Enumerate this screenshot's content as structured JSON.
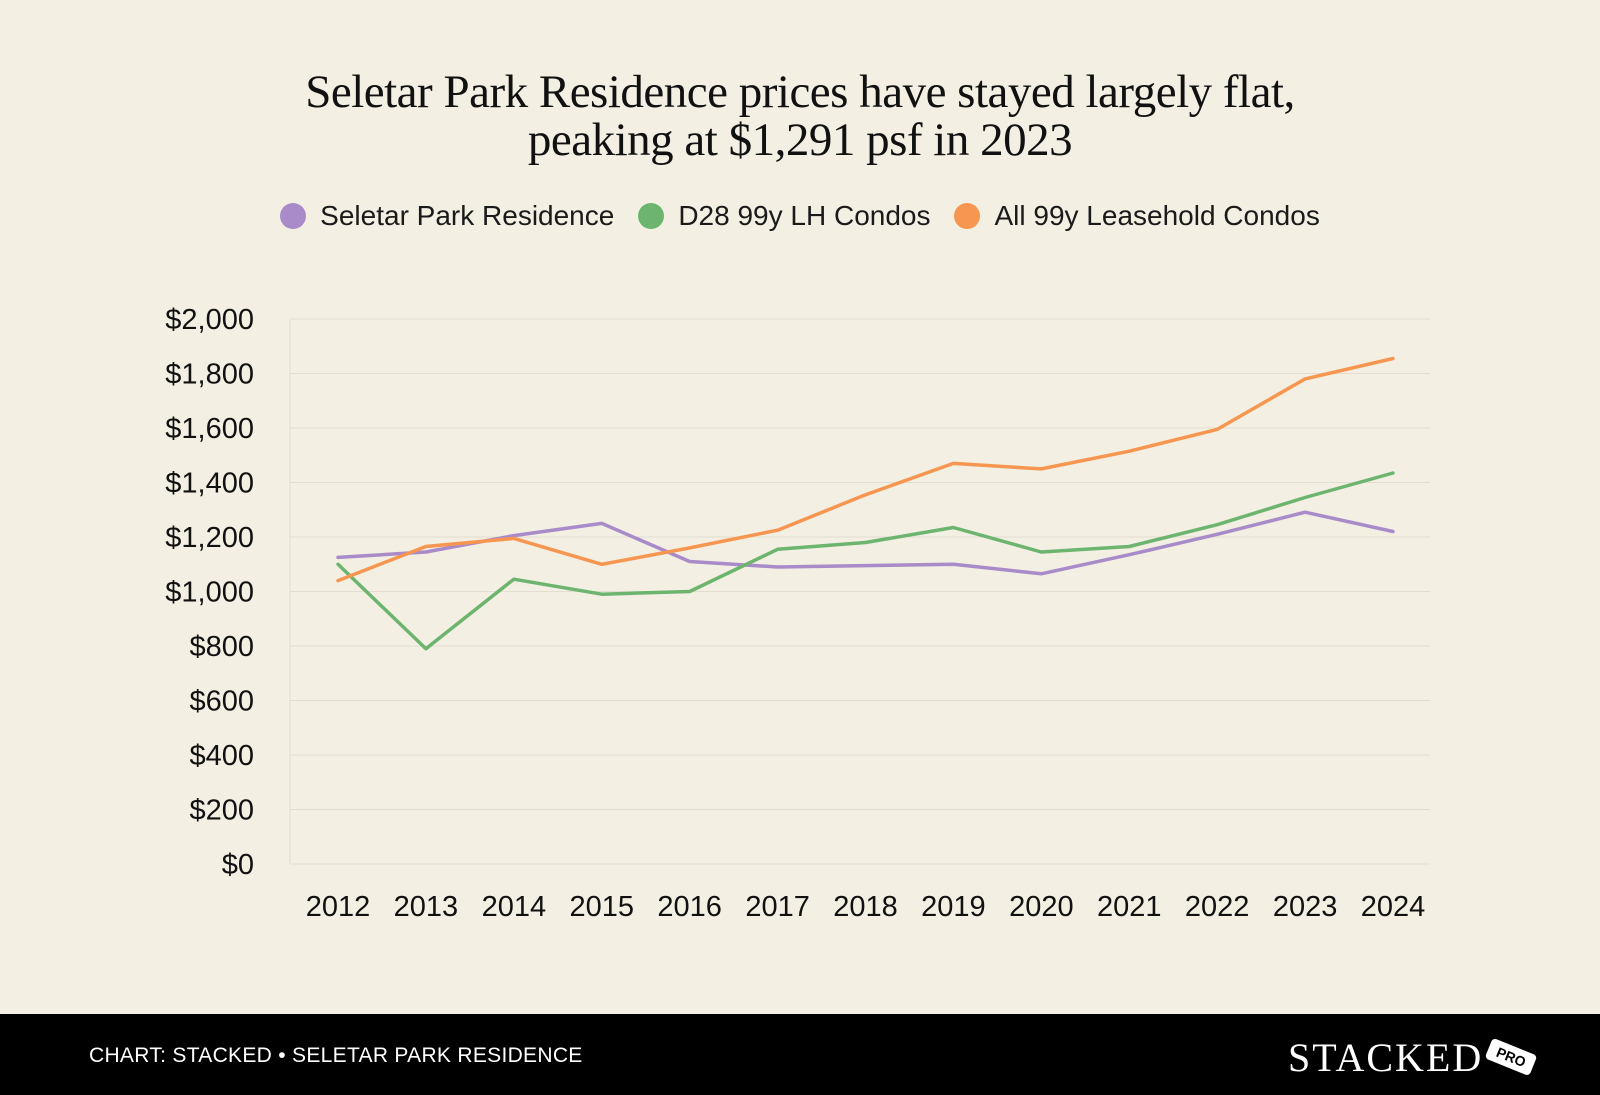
{
  "title": {
    "line1": "Seletar Park Residence prices have stayed largely flat,",
    "line2": "peaking at $1,291 psf in 2023"
  },
  "footer": {
    "source": "CHART: STACKED • SELETAR PARK RESIDENCE",
    "brand": "STACKED",
    "badge": "PRO"
  },
  "chart_data": {
    "type": "line",
    "title": "Seletar Park Residence prices have stayed largely flat, peaking at $1,291 psf in 2023",
    "xlabel": "",
    "ylabel": "",
    "ylim": [
      0,
      2000
    ],
    "yticks": [
      0,
      200,
      400,
      600,
      800,
      1000,
      1200,
      1400,
      1600,
      1800,
      2000
    ],
    "ytick_labels": [
      "$0",
      "$200",
      "$400",
      "$600",
      "$800",
      "$1,000",
      "$1,200",
      "$1,400",
      "$1,600",
      "$1,800",
      "$2,000"
    ],
    "grid": true,
    "legend_position": "top-center",
    "categories": [
      "2012",
      "2013",
      "2014",
      "2015",
      "2016",
      "2017",
      "2018",
      "2019",
      "2020",
      "2021",
      "2022",
      "2023",
      "2024"
    ],
    "series": [
      {
        "name": "Seletar Park Residence",
        "color": "#a98bc9",
        "values": [
          1125,
          1145,
          1205,
          1250,
          1110,
          1090,
          1095,
          1100,
          1065,
          1135,
          1210,
          1291,
          1220
        ]
      },
      {
        "name": "D28 99y LH Condos",
        "color": "#6db56f",
        "values": [
          1100,
          790,
          1045,
          990,
          1000,
          1155,
          1180,
          1235,
          1145,
          1165,
          1245,
          1345,
          1435
        ]
      },
      {
        "name": "All 99y Leasehold Condos",
        "color": "#f79650",
        "values": [
          1040,
          1165,
          1195,
          1100,
          1160,
          1225,
          1355,
          1470,
          1450,
          1515,
          1595,
          1780,
          1855
        ]
      }
    ]
  }
}
